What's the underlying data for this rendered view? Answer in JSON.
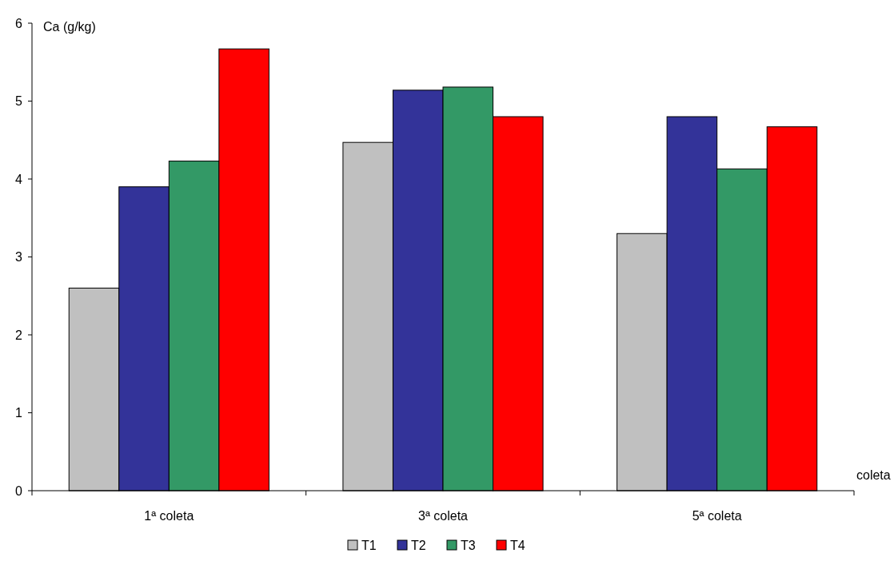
{
  "chart_data": {
    "type": "bar",
    "xlabel": "coleta",
    "ylabel": "Ca (g/kg)",
    "categories": [
      "1ª coleta",
      "3ª coleta",
      "5ª coleta"
    ],
    "series": [
      {
        "name": "T1",
        "color": "#c0c0c0",
        "values": [
          2.6,
          4.47,
          3.3
        ]
      },
      {
        "name": "T2",
        "color": "#333399",
        "values": [
          3.9,
          5.14,
          4.8
        ]
      },
      {
        "name": "T3",
        "color": "#339966",
        "values": [
          4.23,
          5.18,
          4.13
        ]
      },
      {
        "name": "T4",
        "color": "#ff0000",
        "values": [
          5.67,
          4.8,
          4.67
        ]
      }
    ],
    "ylim": [
      0,
      6
    ],
    "yticks": [
      0,
      1,
      2,
      3,
      4,
      5,
      6
    ],
    "grid": false,
    "legend": "bottom"
  }
}
